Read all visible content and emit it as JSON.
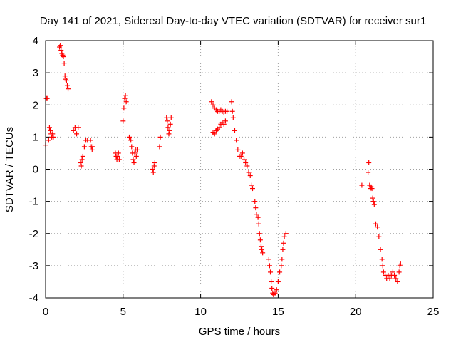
{
  "chart_data": {
    "type": "scatter",
    "title": "Day 141 of 2021, Sidereal Day-to-day VTEC variation (SDTVAR) for receiver sur1",
    "xlabel": "GPS time / hours",
    "ylabel": "SDTVAR / TECUs",
    "xlim": [
      0,
      25
    ],
    "ylim": [
      -4,
      4
    ],
    "xticks": [
      "0",
      "5",
      "10",
      "15",
      "20",
      "25"
    ],
    "yticks": [
      "-4",
      "-3",
      "-2",
      "-1",
      "0",
      "1",
      "2",
      "3",
      "4"
    ],
    "grid": true,
    "marker": "+",
    "color": "#ff0000",
    "series": [
      {
        "name": "SDTVAR",
        "segments": [
          [
            [
              0.0,
              0.75
            ],
            [
              0.05,
              2.2
            ],
            [
              0.1,
              2.2
            ]
          ],
          [
            [
              0.2,
              0.9
            ],
            [
              0.25,
              1.3
            ],
            [
              0.3,
              1.2
            ],
            [
              0.35,
              1.1
            ],
            [
              0.4,
              1.0
            ],
            [
              0.45,
              1.1
            ],
            [
              0.5,
              1.0
            ]
          ],
          [
            [
              0.9,
              3.8
            ],
            [
              0.95,
              3.85
            ],
            [
              1.0,
              3.7
            ],
            [
              1.05,
              3.6
            ],
            [
              1.1,
              3.55
            ],
            [
              1.15,
              3.5
            ],
            [
              1.2,
              3.3
            ],
            [
              1.25,
              2.9
            ],
            [
              1.3,
              2.8
            ],
            [
              1.35,
              2.75
            ],
            [
              1.4,
              2.6
            ],
            [
              1.45,
              2.5
            ]
          ],
          [
            [
              1.8,
              1.2
            ],
            [
              1.9,
              1.3
            ],
            [
              2.0,
              1.1
            ],
            [
              2.1,
              1.3
            ]
          ],
          [
            [
              2.25,
              0.2
            ],
            [
              2.3,
              0.1
            ],
            [
              2.35,
              0.3
            ],
            [
              2.4,
              0.4
            ],
            [
              2.5,
              0.7
            ],
            [
              2.6,
              0.9
            ],
            [
              2.7,
              0.9
            ]
          ],
          [
            [
              2.9,
              0.9
            ],
            [
              2.95,
              0.7
            ],
            [
              3.0,
              0.6
            ],
            [
              3.05,
              0.7
            ]
          ],
          [
            [
              4.5,
              0.5
            ],
            [
              4.55,
              0.4
            ],
            [
              4.6,
              0.3
            ],
            [
              4.65,
              0.4
            ],
            [
              4.7,
              0.5
            ],
            [
              4.75,
              0.3
            ]
          ],
          [
            [
              5.0,
              1.5
            ],
            [
              5.05,
              1.9
            ],
            [
              5.1,
              2.2
            ],
            [
              5.15,
              2.3
            ],
            [
              5.2,
              2.1
            ]
          ],
          [
            [
              5.4,
              1.0
            ],
            [
              5.5,
              0.9
            ],
            [
              5.55,
              0.7
            ],
            [
              5.6,
              0.5
            ],
            [
              5.65,
              0.3
            ],
            [
              5.7,
              0.2
            ],
            [
              5.75,
              0.5
            ],
            [
              5.8,
              0.6
            ],
            [
              5.85,
              0.4
            ],
            [
              5.9,
              0.6
            ]
          ],
          [
            [
              6.9,
              0.0
            ],
            [
              6.95,
              -0.1
            ],
            [
              7.0,
              0.1
            ],
            [
              7.05,
              0.2
            ]
          ],
          [
            [
              7.35,
              0.7
            ],
            [
              7.4,
              1.0
            ]
          ],
          [
            [
              7.8,
              1.6
            ],
            [
              7.85,
              1.5
            ],
            [
              7.9,
              1.3
            ],
            [
              7.95,
              1.1
            ],
            [
              8.0,
              1.2
            ],
            [
              8.05,
              1.4
            ],
            [
              8.1,
              1.6
            ]
          ],
          [
            [
              10.7,
              2.1
            ],
            [
              10.8,
              2.0
            ],
            [
              10.9,
              1.9
            ],
            [
              11.0,
              1.85
            ],
            [
              11.1,
              1.8
            ],
            [
              11.2,
              1.8
            ],
            [
              11.3,
              1.85
            ],
            [
              11.4,
              1.8
            ],
            [
              11.5,
              1.75
            ],
            [
              11.6,
              1.8
            ],
            [
              11.7,
              1.8
            ]
          ],
          [
            [
              10.8,
              1.15
            ],
            [
              10.9,
              1.1
            ],
            [
              11.0,
              1.2
            ],
            [
              11.1,
              1.25
            ],
            [
              11.2,
              1.3
            ],
            [
              11.3,
              1.4
            ],
            [
              11.4,
              1.45
            ],
            [
              11.5,
              1.4
            ],
            [
              11.6,
              1.5
            ]
          ],
          [
            [
              12.0,
              2.1
            ],
            [
              12.05,
              1.8
            ],
            [
              12.1,
              1.6
            ],
            [
              12.2,
              1.2
            ],
            [
              12.3,
              0.9
            ],
            [
              12.4,
              0.6
            ],
            [
              12.5,
              0.4
            ],
            [
              12.6,
              0.4
            ],
            [
              12.7,
              0.5
            ],
            [
              12.8,
              0.3
            ],
            [
              12.9,
              0.2
            ],
            [
              13.0,
              0.1
            ],
            [
              13.1,
              -0.1
            ],
            [
              13.2,
              -0.2
            ],
            [
              13.3,
              -0.5
            ],
            [
              13.35,
              -0.6
            ]
          ],
          [
            [
              13.5,
              -1.0
            ],
            [
              13.55,
              -1.2
            ],
            [
              13.6,
              -1.4
            ],
            [
              13.7,
              -1.5
            ],
            [
              13.75,
              -1.7
            ],
            [
              13.8,
              -2.0
            ],
            [
              13.85,
              -2.2
            ],
            [
              13.9,
              -2.4
            ],
            [
              13.95,
              -2.5
            ],
            [
              14.0,
              -2.6
            ]
          ],
          [
            [
              14.4,
              -2.8
            ],
            [
              14.45,
              -3.0
            ],
            [
              14.5,
              -3.2
            ],
            [
              14.55,
              -3.5
            ],
            [
              14.6,
              -3.7
            ],
            [
              14.65,
              -3.85
            ],
            [
              14.7,
              -3.9
            ],
            [
              14.8,
              -3.85
            ],
            [
              14.9,
              -3.75
            ],
            [
              15.0,
              -3.5
            ],
            [
              15.1,
              -3.2
            ],
            [
              15.2,
              -3.0
            ],
            [
              15.25,
              -2.8
            ],
            [
              15.3,
              -2.5
            ],
            [
              15.35,
              -2.3
            ],
            [
              15.4,
              -2.1
            ],
            [
              15.5,
              -2.0
            ]
          ],
          [
            [
              20.4,
              -0.5
            ]
          ],
          [
            [
              20.8,
              -0.1
            ],
            [
              20.85,
              0.2
            ],
            [
              20.9,
              -0.5
            ],
            [
              20.95,
              -0.6
            ],
            [
              21.0,
              -0.55
            ],
            [
              21.05,
              -0.6
            ],
            [
              21.1,
              -0.9
            ],
            [
              21.15,
              -1.0
            ],
            [
              21.2,
              -1.1
            ],
            [
              21.3,
              -1.7
            ],
            [
              21.4,
              -1.8
            ],
            [
              21.5,
              -2.1
            ],
            [
              21.6,
              -2.5
            ],
            [
              21.7,
              -2.8
            ],
            [
              21.75,
              -3.0
            ],
            [
              21.8,
              -3.2
            ],
            [
              21.9,
              -3.3
            ],
            [
              22.0,
              -3.4
            ],
            [
              22.1,
              -3.3
            ],
            [
              22.2,
              -3.4
            ],
            [
              22.3,
              -3.3
            ],
            [
              22.4,
              -3.2
            ],
            [
              22.5,
              -3.3
            ],
            [
              22.6,
              -3.4
            ],
            [
              22.7,
              -3.5
            ],
            [
              22.8,
              -3.2
            ],
            [
              22.85,
              -3.0
            ],
            [
              22.9,
              -2.95
            ]
          ]
        ]
      }
    ]
  }
}
